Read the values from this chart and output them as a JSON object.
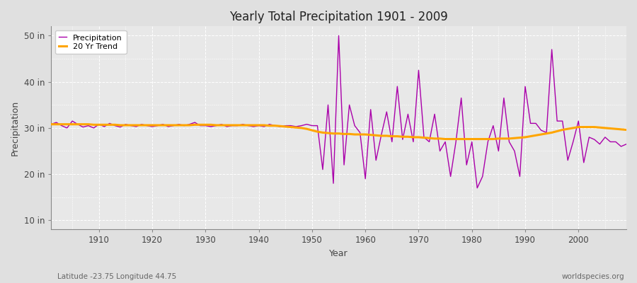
{
  "title": "Yearly Total Precipitation 1901 - 2009",
  "xlabel": "Year",
  "ylabel": "Precipitation",
  "subtitle": "Latitude -23.75 Longitude 44.75",
  "watermark": "worldspecies.org",
  "ylim": [
    8,
    52
  ],
  "yticks": [
    10,
    20,
    30,
    40,
    50
  ],
  "ytick_labels": [
    "10 in",
    "20 in",
    "30 in",
    "40 in",
    "50 in"
  ],
  "xlim": [
    1901,
    2009
  ],
  "xticks": [
    1910,
    1920,
    1930,
    1940,
    1950,
    1960,
    1970,
    1980,
    1990,
    2000
  ],
  "precip_color": "#AA00AA",
  "trend_color": "#FFA500",
  "bg_color": "#E0E0E0",
  "plot_bg_color": "#E8E8E8",
  "grid_color": "#FFFFFF",
  "years": [
    1901,
    1902,
    1903,
    1904,
    1905,
    1906,
    1907,
    1908,
    1909,
    1910,
    1911,
    1912,
    1913,
    1914,
    1915,
    1916,
    1917,
    1918,
    1919,
    1920,
    1921,
    1922,
    1923,
    1924,
    1925,
    1926,
    1927,
    1928,
    1929,
    1930,
    1931,
    1932,
    1933,
    1934,
    1935,
    1936,
    1937,
    1938,
    1939,
    1940,
    1941,
    1942,
    1943,
    1944,
    1945,
    1946,
    1947,
    1948,
    1949,
    1950,
    1951,
    1952,
    1953,
    1954,
    1955,
    1956,
    1957,
    1958,
    1959,
    1960,
    1961,
    1962,
    1963,
    1964,
    1965,
    1966,
    1967,
    1968,
    1969,
    1970,
    1971,
    1972,
    1973,
    1974,
    1975,
    1976,
    1977,
    1978,
    1979,
    1980,
    1981,
    1982,
    1983,
    1984,
    1985,
    1986,
    1987,
    1988,
    1989,
    1990,
    1991,
    1992,
    1993,
    1994,
    1995,
    1996,
    1997,
    1998,
    1999,
    2000,
    2001,
    2002,
    2003,
    2004,
    2005,
    2006,
    2007,
    2008,
    2009
  ],
  "precipitation": [
    30.8,
    31.2,
    30.5,
    30.0,
    31.5,
    30.8,
    30.2,
    30.5,
    30.0,
    30.8,
    30.3,
    31.0,
    30.5,
    30.2,
    30.8,
    30.5,
    30.3,
    30.8,
    30.5,
    30.3,
    30.5,
    30.8,
    30.3,
    30.5,
    30.8,
    30.5,
    30.8,
    31.2,
    30.5,
    30.5,
    30.3,
    30.5,
    30.8,
    30.3,
    30.5,
    30.5,
    30.8,
    30.5,
    30.3,
    30.5,
    30.3,
    30.8,
    30.5,
    30.3,
    30.5,
    30.5,
    30.3,
    30.5,
    30.8,
    30.5,
    30.5,
    21.0,
    35.0,
    18.0,
    50.0,
    22.0,
    35.0,
    30.5,
    29.0,
    19.0,
    34.0,
    23.0,
    28.5,
    33.5,
    27.0,
    39.0,
    27.5,
    33.0,
    27.0,
    42.5,
    28.0,
    27.0,
    33.0,
    25.0,
    27.0,
    19.5,
    27.0,
    36.5,
    22.0,
    27.0,
    17.0,
    19.5,
    27.0,
    30.5,
    25.0,
    36.5,
    27.0,
    25.0,
    19.5,
    39.0,
    31.0,
    31.0,
    29.5,
    29.0,
    47.0,
    31.5,
    31.5,
    23.0,
    27.0,
    31.5,
    22.5,
    28.0,
    27.5,
    26.5,
    28.0,
    27.0,
    27.0,
    26.0,
    26.5
  ],
  "trend_years": [
    1901,
    1902,
    1903,
    1904,
    1905,
    1906,
    1907,
    1908,
    1909,
    1910,
    1911,
    1912,
    1913,
    1914,
    1915,
    1916,
    1917,
    1918,
    1919,
    1920,
    1921,
    1922,
    1923,
    1924,
    1925,
    1926,
    1927,
    1928,
    1929,
    1930,
    1931,
    1932,
    1933,
    1934,
    1935,
    1936,
    1937,
    1938,
    1939,
    1940,
    1941,
    1942,
    1943,
    1944,
    1945,
    1946,
    1947,
    1948,
    1949,
    1950,
    1951,
    1952,
    1953,
    1954,
    1955,
    1956,
    1957,
    1958,
    1959,
    1960,
    1961,
    1962,
    1963,
    1964,
    1965,
    1966,
    1967,
    1968,
    1969,
    1970,
    1971,
    1972,
    1973,
    1974,
    1975,
    1976,
    1977,
    1978,
    1979,
    1980,
    1981,
    1982,
    1983,
    1984,
    1985,
    1986,
    1987,
    1988,
    1989,
    1990,
    1991,
    1992,
    1993,
    1994,
    1995,
    1996,
    1997,
    1998,
    1999,
    2000,
    2001,
    2002,
    2003,
    2004,
    2005,
    2006,
    2007,
    2008,
    2009
  ],
  "trend": [
    30.8,
    30.8,
    30.8,
    30.8,
    30.8,
    30.8,
    30.8,
    30.8,
    30.7,
    30.7,
    30.7,
    30.7,
    30.7,
    30.6,
    30.6,
    30.6,
    30.6,
    30.6,
    30.6,
    30.6,
    30.6,
    30.6,
    30.6,
    30.6,
    30.6,
    30.6,
    30.6,
    30.7,
    30.7,
    30.7,
    30.7,
    30.6,
    30.6,
    30.6,
    30.6,
    30.6,
    30.6,
    30.6,
    30.6,
    30.6,
    30.6,
    30.5,
    30.5,
    30.4,
    30.3,
    30.2,
    30.1,
    30.0,
    29.8,
    29.5,
    29.2,
    29.0,
    28.9,
    28.8,
    28.8,
    28.7,
    28.7,
    28.6,
    28.6,
    28.6,
    28.5,
    28.4,
    28.3,
    28.3,
    28.2,
    28.2,
    28.1,
    28.1,
    28.0,
    28.0,
    27.9,
    27.8,
    27.7,
    27.7,
    27.6,
    27.6,
    27.6,
    27.6,
    27.6,
    27.6,
    27.6,
    27.6,
    27.6,
    27.6,
    27.7,
    27.7,
    27.7,
    27.8,
    27.9,
    28.0,
    28.2,
    28.4,
    28.6,
    28.8,
    29.0,
    29.3,
    29.6,
    29.8,
    30.0,
    30.2,
    30.2,
    30.2,
    30.2,
    30.1,
    30.0,
    29.9,
    29.8,
    29.7,
    29.6
  ]
}
